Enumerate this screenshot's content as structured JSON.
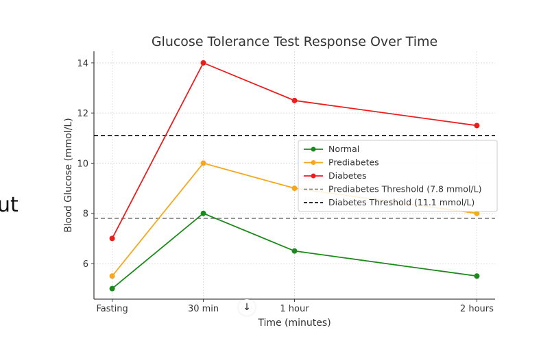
{
  "background_fragment": "ut",
  "scroll_button": {
    "icon": "arrow-down-icon",
    "glyph": "↓"
  },
  "chart_data": {
    "type": "line",
    "title": "Glucose Tolerance Test Response Over Time",
    "xlabel": "Time (minutes)",
    "ylabel": "Blood Glucose (mmol/L)",
    "x": [
      0,
      30,
      60,
      120
    ],
    "x_tick_labels": [
      "Fasting",
      "30 min",
      "1 hour",
      "2 hours"
    ],
    "y_ticks": [
      6,
      8,
      10,
      12,
      14
    ],
    "xlim": [
      -6,
      126
    ],
    "ylim": [
      4.58,
      14.46
    ],
    "grid": true,
    "legend_placement": "center-right",
    "series": [
      {
        "name": "Normal",
        "values": [
          5,
          8,
          6.5,
          5.5
        ],
        "color": "#1a8a1a"
      },
      {
        "name": "Prediabetes",
        "values": [
          5.5,
          10,
          9,
          8
        ],
        "color": "#f5a81c"
      },
      {
        "name": "Diabetes",
        "values": [
          7,
          14,
          12.5,
          11.5
        ],
        "color": "#ee1c1c"
      }
    ],
    "thresholds": [
      {
        "name": "Prediabetes Threshold (7.8 mmol/L)",
        "value": 7.8,
        "color": "#888888"
      },
      {
        "name": "Diabetes Threshold (11.1 mmol/L)",
        "value": 11.1,
        "color": "#111111"
      }
    ]
  }
}
